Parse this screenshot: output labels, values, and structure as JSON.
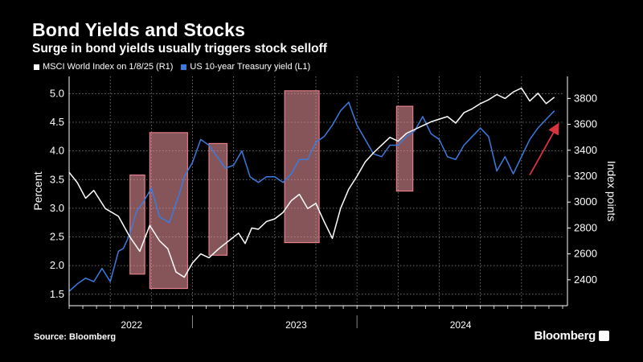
{
  "header": {
    "title": "Bond Yields and Stocks",
    "subtitle": "Surge in bond yields usually triggers stock selloff"
  },
  "footer": {
    "source": "Source: Bloomberg",
    "brand": "Bloomberg"
  },
  "colors": {
    "background": "#000000",
    "msci_line": "#ffffff",
    "yield_line": "#3a7be0",
    "highlight_fill": "#f39aa3",
    "highlight_stroke": "#ff8a94",
    "arrow": "#d8343e",
    "grid": "#8a8a8a"
  },
  "chart_data": {
    "type": "line",
    "title": "Bond Yields and Stocks",
    "subtitle": "Surge in bond yields usually triggers stock selloff",
    "x_range": [
      2021.75,
      2024.75
    ],
    "x_year_labels": [
      {
        "label": "2022",
        "x": 2022.0
      },
      {
        "label": "2023",
        "x": 2023.0
      },
      {
        "label": "2024",
        "x": 2024.0
      }
    ],
    "left_axis": {
      "label": "Percent",
      "range": [
        1.3,
        5.3
      ],
      "ticks": [
        1.5,
        2.0,
        2.5,
        3.0,
        3.5,
        4.0,
        4.5,
        5.0
      ],
      "tick_labels": [
        "1.5",
        "2.0",
        "2.5",
        "3.0",
        "3.5",
        "4.0",
        "4.5",
        "5.0"
      ]
    },
    "right_axis": {
      "label": "Index points",
      "range": [
        2200,
        3970
      ],
      "ticks": [
        2400,
        2600,
        2800,
        3000,
        3200,
        3400,
        3600,
        3800
      ],
      "tick_labels": [
        "2400",
        "2600",
        "2800",
        "3000",
        "3200",
        "3400",
        "3600",
        "3800"
      ]
    },
    "series": [
      {
        "name": "MSCI World Index on 1/8/25 (R1)",
        "axis": "right",
        "color": "#ffffff",
        "x": [
          2021.75,
          2021.8,
          2021.85,
          2021.9,
          2021.97,
          2022.05,
          2022.12,
          2022.18,
          2022.24,
          2022.3,
          2022.35,
          2022.4,
          2022.45,
          2022.5,
          2022.55,
          2022.6,
          2022.66,
          2022.72,
          2022.78,
          2022.82,
          2022.86,
          2022.9,
          2022.95,
          2023.0,
          2023.05,
          2023.1,
          2023.15,
          2023.2,
          2023.25,
          2023.3,
          2023.35,
          2023.4,
          2023.45,
          2023.5,
          2023.55,
          2023.6,
          2023.65,
          2023.7,
          2023.75,
          2023.8,
          2023.85,
          2023.9,
          2023.95,
          2024.0,
          2024.05,
          2024.1,
          2024.15,
          2024.2,
          2024.25,
          2024.3,
          2024.35,
          2024.4,
          2024.45,
          2024.5,
          2024.55,
          2024.6,
          2024.65,
          2024.7
        ],
        "values": [
          3230,
          3150,
          3030,
          3090,
          2950,
          2890,
          2730,
          2620,
          2820,
          2700,
          2640,
          2460,
          2420,
          2530,
          2600,
          2570,
          2640,
          2700,
          2760,
          2680,
          2800,
          2790,
          2850,
          2870,
          2920,
          3010,
          3060,
          2950,
          2990,
          2850,
          2720,
          2950,
          3100,
          3200,
          3310,
          3380,
          3440,
          3500,
          3470,
          3530,
          3560,
          3590,
          3620,
          3640,
          3660,
          3610,
          3690,
          3720,
          3760,
          3790,
          3830,
          3800,
          3850,
          3880,
          3780,
          3840,
          3760,
          3810
        ]
      },
      {
        "name": "US 10-year Treasury yield (L1)",
        "axis": "left",
        "color": "#3a7be0",
        "x": [
          2021.75,
          2021.8,
          2021.85,
          2021.9,
          2021.95,
          2022.0,
          2022.05,
          2022.08,
          2022.12,
          2022.16,
          2022.2,
          2022.25,
          2022.3,
          2022.36,
          2022.42,
          2022.45,
          2022.5,
          2022.55,
          2022.6,
          2022.65,
          2022.7,
          2022.75,
          2022.8,
          2022.85,
          2022.9,
          2022.95,
          2023.0,
          2023.05,
          2023.1,
          2023.15,
          2023.2,
          2023.25,
          2023.3,
          2023.35,
          2023.4,
          2023.45,
          2023.5,
          2023.55,
          2023.6,
          2023.65,
          2023.7,
          2023.75,
          2023.8,
          2023.85,
          2023.9,
          2023.95,
          2024.0,
          2024.05,
          2024.1,
          2024.15,
          2024.2,
          2024.25,
          2024.3,
          2024.35,
          2024.4,
          2024.45,
          2024.5,
          2024.55,
          2024.6,
          2024.65,
          2024.7
        ],
        "values": [
          1.55,
          1.68,
          1.78,
          1.72,
          1.95,
          1.72,
          2.25,
          2.3,
          2.55,
          2.95,
          3.1,
          3.35,
          2.85,
          2.75,
          3.25,
          3.55,
          3.8,
          4.2,
          4.1,
          3.9,
          3.7,
          3.75,
          4.0,
          3.55,
          3.45,
          3.55,
          3.55,
          3.45,
          3.6,
          3.85,
          3.85,
          4.15,
          4.25,
          4.45,
          4.7,
          4.85,
          4.45,
          4.2,
          3.95,
          3.9,
          4.1,
          4.1,
          4.25,
          4.35,
          4.6,
          4.3,
          4.2,
          3.9,
          3.85,
          4.1,
          4.25,
          4.4,
          4.25,
          3.65,
          3.9,
          3.6,
          3.9,
          4.2,
          4.4,
          4.55,
          4.7
        ]
      }
    ],
    "highlight_regions": [
      {
        "x0": 2022.12,
        "x1": 2022.21,
        "y0": 1.85,
        "y1": 3.58
      },
      {
        "x0": 2022.24,
        "x1": 2022.47,
        "y0": 1.6,
        "y1": 4.32
      },
      {
        "x0": 2022.6,
        "x1": 2022.71,
        "y0": 2.18,
        "y1": 4.13
      },
      {
        "x0": 2023.06,
        "x1": 2023.27,
        "y0": 2.4,
        "y1": 5.05
      },
      {
        "x0": 2023.74,
        "x1": 2023.84,
        "y0": 3.3,
        "y1": 4.78
      }
    ],
    "trend_arrow": {
      "x0": 2024.55,
      "y0": 3.58,
      "x1": 2024.72,
      "y1": 4.45
    }
  }
}
